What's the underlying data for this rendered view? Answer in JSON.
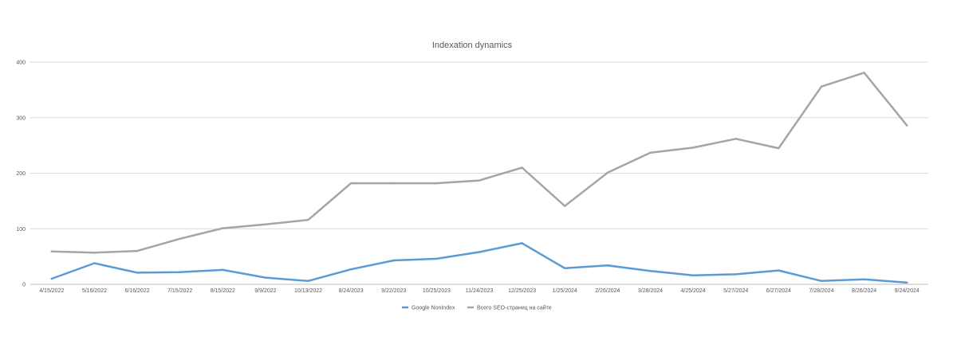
{
  "chart_data": {
    "type": "line",
    "title": "Indexation dynamics",
    "xlabel": "",
    "ylabel": "",
    "ylim": [
      0,
      400
    ],
    "yticks": [
      0,
      100,
      200,
      300,
      400
    ],
    "grid": true,
    "legend_position": "bottom",
    "categories": [
      "4/15/2022",
      "5/16/2022",
      "6/16/2022",
      "7/15/2022",
      "8/15/2022",
      "9/9/2022",
      "10/13/2022",
      "8/24/2023",
      "9/22/2023",
      "10/25/2023",
      "11/24/2023",
      "12/25/2023",
      "1/25/2024",
      "2/26/2024",
      "3/28/2024",
      "4/25/2024",
      "5/27/2024",
      "6/27/2024",
      "7/28/2024",
      "8/26/2024",
      "9/24/2024"
    ],
    "series": [
      {
        "name": "Google NonIndex",
        "color": "#5b9bd5",
        "values": [
          10,
          38,
          21,
          22,
          26,
          12,
          6,
          27,
          43,
          46,
          58,
          74,
          29,
          34,
          24,
          16,
          18,
          25,
          6,
          9,
          3
        ]
      },
      {
        "name": "Всего SEO-страниц на сайте",
        "color": "#a5a5a5",
        "values": [
          59,
          57,
          60,
          82,
          101,
          108,
          116,
          182,
          182,
          182,
          187,
          210,
          141,
          201,
          237,
          246,
          262,
          245,
          356,
          381,
          286
        ]
      }
    ]
  }
}
